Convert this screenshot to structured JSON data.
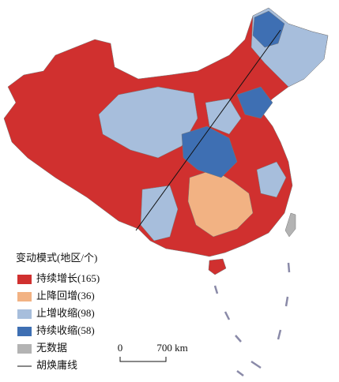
{
  "legend": {
    "title": "变动模式(地区/个)",
    "items": [
      {
        "label": "持续增长(165)",
        "color": "#d0302f"
      },
      {
        "label": "止降回增(36)",
        "color": "#f2b283"
      },
      {
        "label": "止增收缩(98)",
        "color": "#a7bedc"
      },
      {
        "label": "持续收缩(58)",
        "color": "#3e6fb3"
      },
      {
        "label": "无数据",
        "color": "#b3b3b3"
      }
    ],
    "line_label": "胡焕庸线"
  },
  "scale_bar": {
    "start": "0",
    "end": "700 km"
  }
}
